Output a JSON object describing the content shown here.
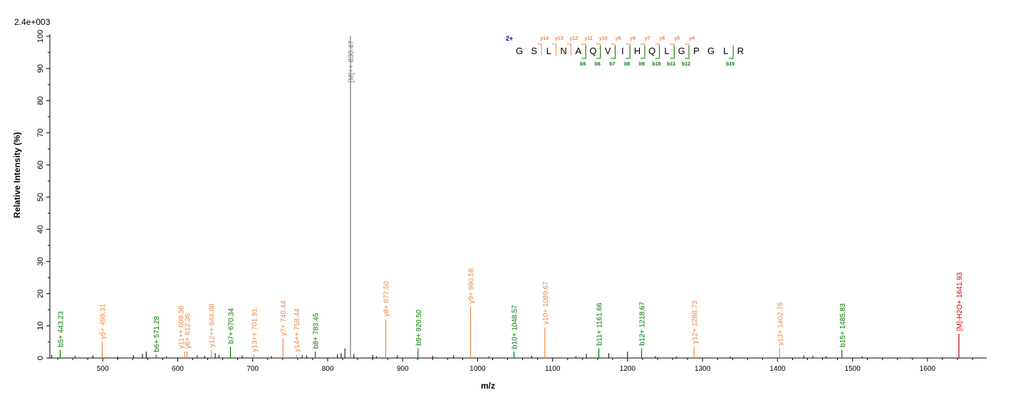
{
  "scale_label": "2.4e+003",
  "chart_data": {
    "type": "bar",
    "xlabel": "m/z",
    "ylabel": "Relative   Intensity (%)",
    "xlim": [
      430,
      1665
    ],
    "ylim": [
      0,
      100
    ],
    "x_ticks": [
      500,
      600,
      700,
      800,
      900,
      1000,
      1100,
      1200,
      1300,
      1400,
      1500,
      1600
    ],
    "y_ticks": [
      0,
      10,
      20,
      30,
      40,
      50,
      60,
      70,
      80,
      90,
      100
    ],
    "colors": {
      "b": "#007700",
      "y": "#ee8844",
      "precursor": "#777777",
      "neutral_loss": "#cc0000",
      "noise": "#000000"
    },
    "annotated_peaks": [
      {
        "label": "b5+ 443.23",
        "mz": 443.23,
        "intensity": 2.5,
        "ion": "b"
      },
      {
        "label": "y5+ 499.31",
        "mz": 499.31,
        "intensity": 5.0,
        "ion": "y"
      },
      {
        "label": "b6+ 571.28",
        "mz": 571.28,
        "intensity": 1.0,
        "ion": "b"
      },
      {
        "label": "y11++ 609.36",
        "mz": 609.36,
        "intensity": 2.0,
        "ion": "y"
      },
      {
        "label": "y6+ 612.36",
        "mz": 612.36,
        "intensity": 2.0,
        "ion": "y"
      },
      {
        "label": "y12++ 644.88",
        "mz": 644.88,
        "intensity": 2.5,
        "ion": "y"
      },
      {
        "label": "b7+ 670.34",
        "mz": 670.34,
        "intensity": 3.5,
        "ion": "b"
      },
      {
        "label": "y13++ 701.91",
        "mz": 701.91,
        "intensity": 1.0,
        "ion": "y"
      },
      {
        "label": "y7+ 740.44",
        "mz": 740.44,
        "intensity": 6.0,
        "ion": "y"
      },
      {
        "label": "y14++ 758.44",
        "mz": 758.44,
        "intensity": 1.0,
        "ion": "y"
      },
      {
        "label": "b8+ 783.45",
        "mz": 783.45,
        "intensity": 2.0,
        "ion": "b"
      },
      {
        "label": "[M]++ 830.47",
        "mz": 830.47,
        "intensity": 100,
        "ion": "precursor"
      },
      {
        "label": "y8+ 877.50",
        "mz": 877.5,
        "intensity": 12.0,
        "ion": "y"
      },
      {
        "label": "b9+ 920.50",
        "mz": 920.5,
        "intensity": 3.0,
        "ion": "b"
      },
      {
        "label": "y9+ 990.58",
        "mz": 990.58,
        "intensity": 16.0,
        "ion": "y"
      },
      {
        "label": "b10+ 1048.57",
        "mz": 1048.57,
        "intensity": 2.0,
        "ion": "b"
      },
      {
        "label": "y10+ 1089.67",
        "mz": 1089.67,
        "intensity": 9.5,
        "ion": "y"
      },
      {
        "label": "b11+ 1161.66",
        "mz": 1161.66,
        "intensity": 3.0,
        "ion": "b"
      },
      {
        "label": "b12+ 1218.67",
        "mz": 1218.67,
        "intensity": 3.0,
        "ion": "b"
      },
      {
        "label": "y12+ 1288.73",
        "mz": 1288.73,
        "intensity": 3.5,
        "ion": "y"
      },
      {
        "label": "y13+ 1402.76",
        "mz": 1402.76,
        "intensity": 3.0,
        "ion": "y"
      },
      {
        "label": "b15+ 1485.83",
        "mz": 1485.83,
        "intensity": 2.5,
        "ion": "b"
      },
      {
        "label": "[M]-H2O+ 1641.93",
        "mz": 1641.93,
        "intensity": 7.5,
        "ion": "neutral_loss"
      }
    ],
    "noise_peaks": [
      {
        "mz": 432,
        "intensity": 1.0
      },
      {
        "mz": 463,
        "intensity": 0.7
      },
      {
        "mz": 487,
        "intensity": 0.8
      },
      {
        "mz": 520,
        "intensity": 0.5
      },
      {
        "mz": 541,
        "intensity": 0.9
      },
      {
        "mz": 553,
        "intensity": 1.3
      },
      {
        "mz": 558,
        "intensity": 2.0
      },
      {
        "mz": 585,
        "intensity": 0.5
      },
      {
        "mz": 626,
        "intensity": 0.8
      },
      {
        "mz": 636,
        "intensity": 0.7
      },
      {
        "mz": 650,
        "intensity": 1.5
      },
      {
        "mz": 655,
        "intensity": 1.0
      },
      {
        "mz": 686,
        "intensity": 0.8
      },
      {
        "mz": 725,
        "intensity": 0.6
      },
      {
        "mz": 766,
        "intensity": 0.9
      },
      {
        "mz": 772,
        "intensity": 0.8
      },
      {
        "mz": 813,
        "intensity": 1.2
      },
      {
        "mz": 818,
        "intensity": 1.6
      },
      {
        "mz": 823,
        "intensity": 3.0
      },
      {
        "mz": 835,
        "intensity": 1.2
      },
      {
        "mz": 860,
        "intensity": 1.0
      },
      {
        "mz": 865,
        "intensity": 0.6
      },
      {
        "mz": 893,
        "intensity": 0.8
      },
      {
        "mz": 940,
        "intensity": 0.7
      },
      {
        "mz": 968,
        "intensity": 0.8
      },
      {
        "mz": 1015,
        "intensity": 0.5
      },
      {
        "mz": 1072,
        "intensity": 0.7
      },
      {
        "mz": 1131,
        "intensity": 0.6
      },
      {
        "mz": 1145,
        "intensity": 1.3
      },
      {
        "mz": 1175,
        "intensity": 1.5
      },
      {
        "mz": 1200,
        "intensity": 2.0
      },
      {
        "mz": 1237,
        "intensity": 0.6
      },
      {
        "mz": 1265,
        "intensity": 0.5
      },
      {
        "mz": 1337,
        "intensity": 0.5
      },
      {
        "mz": 1435,
        "intensity": 0.8
      },
      {
        "mz": 1447,
        "intensity": 0.7
      },
      {
        "mz": 1465,
        "intensity": 0.6
      },
      {
        "mz": 1513,
        "intensity": 0.5
      }
    ],
    "sequence": {
      "charge": "2+",
      "residues": [
        "G",
        "S",
        "L",
        "N",
        "A",
        "Q",
        "V",
        "I",
        "H",
        "Q",
        "L",
        "G",
        "P",
        "G",
        "L",
        "R"
      ],
      "y_ions": [
        {
          "label": "y14",
          "after": 2
        },
        {
          "label": "y13",
          "after": 3
        },
        {
          "label": "y12",
          "after": 4
        },
        {
          "label": "y11",
          "after": 5
        },
        {
          "label": "y10",
          "after": 6
        },
        {
          "label": "y9",
          "after": 7
        },
        {
          "label": "y8",
          "after": 8
        },
        {
          "label": "y7",
          "after": 9
        },
        {
          "label": "y6",
          "after": 10
        },
        {
          "label": "y5",
          "after": 11
        },
        {
          "label": "y4",
          "after": 12
        }
      ],
      "b_ions": [
        {
          "label": "b5",
          "after": 5
        },
        {
          "label": "b6",
          "after": 6
        },
        {
          "label": "b7",
          "after": 7
        },
        {
          "label": "b8",
          "after": 8
        },
        {
          "label": "b9",
          "after": 9
        },
        {
          "label": "b10",
          "after": 10
        },
        {
          "label": "b11",
          "after": 11
        },
        {
          "label": "b12",
          "after": 12
        },
        {
          "label": "b15",
          "after": 15
        }
      ]
    }
  }
}
